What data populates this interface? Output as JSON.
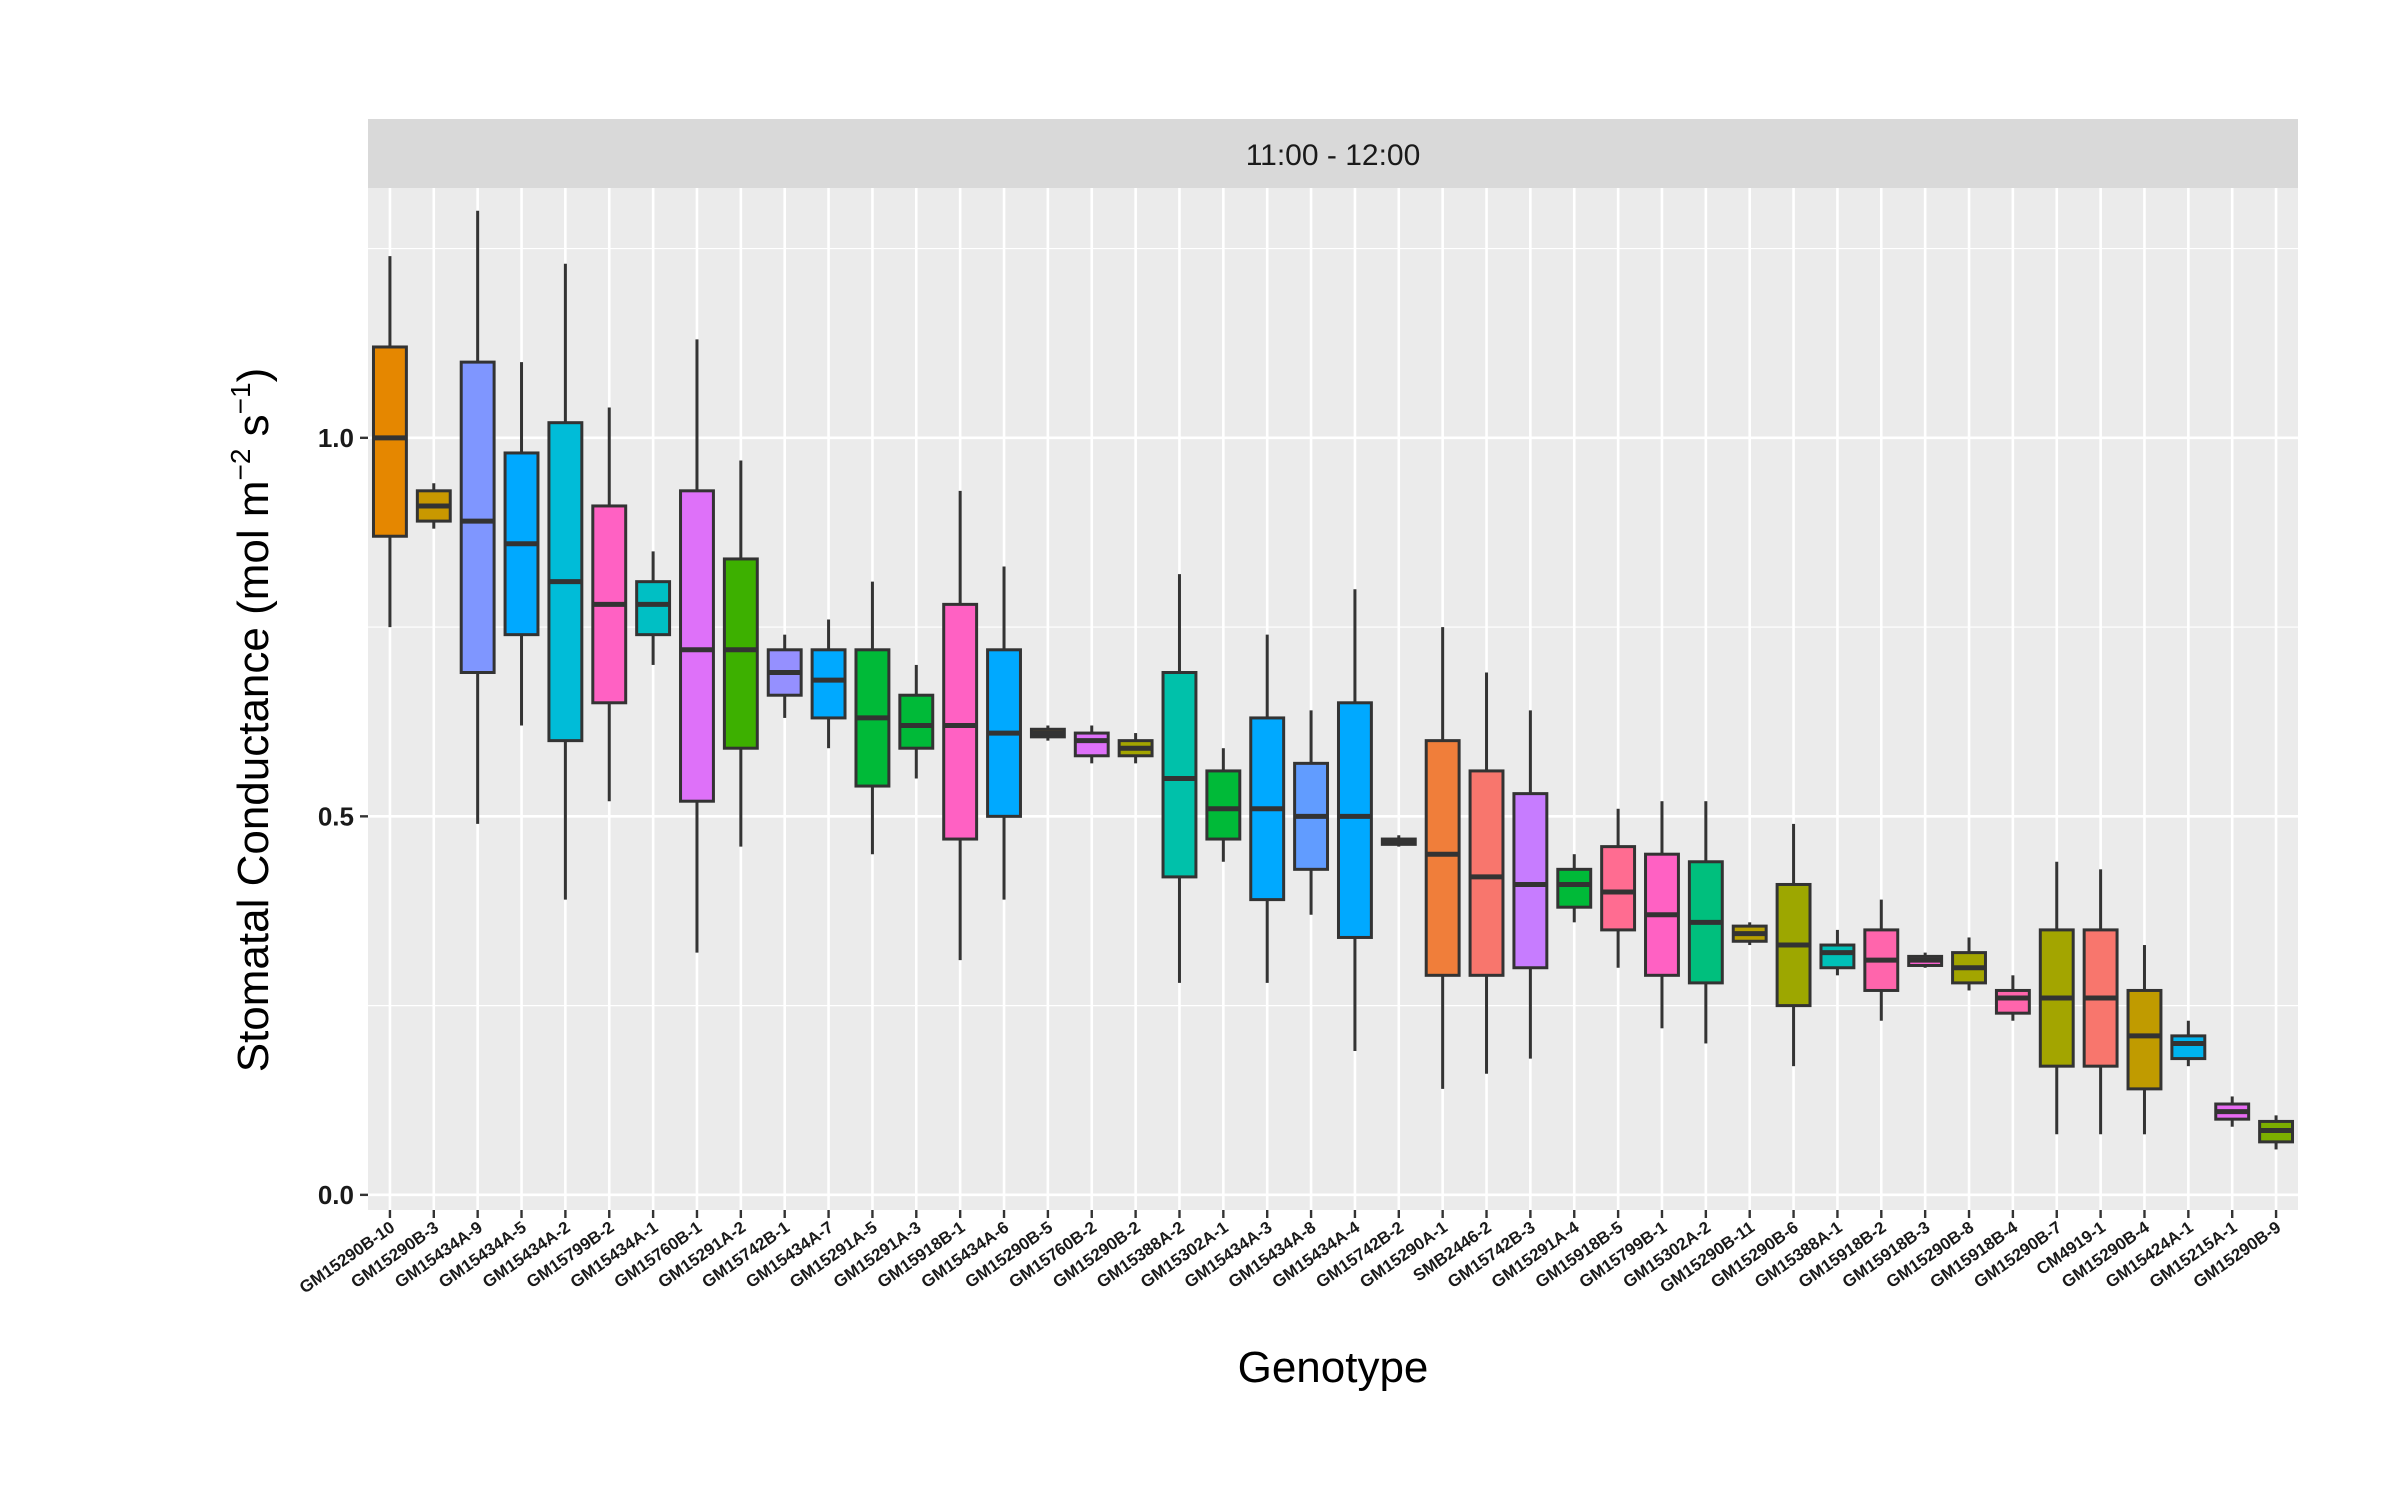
{
  "chart_data": {
    "type": "boxplot",
    "facet_label": "11:00 - 12:00",
    "xlabel": "Genotype",
    "ylabel": "Stomatal Conductance (mol m",
    "ylabel_exp1": "−2",
    "ylabel_mid": " s",
    "ylabel_exp2": "−1",
    "ylabel_end": ")",
    "ylim": [
      -0.02,
      1.33
    ],
    "y_ticks": [
      {
        "value": 0.0,
        "label": "0.0"
      },
      {
        "value": 0.5,
        "label": "0.5"
      },
      {
        "value": 1.0,
        "label": "1.0"
      }
    ],
    "y_minor_ticks": [
      0.25,
      0.75,
      1.25
    ],
    "grid": true,
    "legend": "none",
    "colors": {
      "panel_bg": "#ebebeb",
      "strip_bg": "#d9d9d9",
      "grid": "#ffffff",
      "box_outline": "#333333"
    },
    "boxes": [
      {
        "category": "GM15290B-10",
        "min": 0.75,
        "q1": 0.87,
        "median": 1.0,
        "q3": 1.12,
        "max": 1.24,
        "color": "#E58700"
      },
      {
        "category": "GM15290B-3",
        "min": 0.88,
        "q1": 0.89,
        "median": 0.91,
        "q3": 0.93,
        "max": 0.94,
        "color": "#C99800"
      },
      {
        "category": "GM15434A-9",
        "min": 0.49,
        "q1": 0.69,
        "median": 0.89,
        "q3": 1.1,
        "max": 1.3,
        "color": "#7F96FF"
      },
      {
        "category": "GM15434A-5",
        "min": 0.62,
        "q1": 0.74,
        "median": 0.86,
        "q3": 0.98,
        "max": 1.1,
        "color": "#00A9FF"
      },
      {
        "category": "GM15434A-2",
        "min": 0.39,
        "q1": 0.6,
        "median": 0.81,
        "q3": 1.02,
        "max": 1.23,
        "color": "#00BCD8"
      },
      {
        "category": "GM15799B-2",
        "min": 0.52,
        "q1": 0.65,
        "median": 0.78,
        "q3": 0.91,
        "max": 1.04,
        "color": "#FF61C3"
      },
      {
        "category": "GM15434A-1",
        "min": 0.7,
        "q1": 0.74,
        "median": 0.78,
        "q3": 0.81,
        "max": 0.85,
        "color": "#00BFC4"
      },
      {
        "category": "GM15760B-1",
        "min": 0.32,
        "q1": 0.52,
        "median": 0.72,
        "q3": 0.93,
        "max": 1.13,
        "color": "#DE71F9"
      },
      {
        "category": "GM15291A-2",
        "min": 0.46,
        "q1": 0.59,
        "median": 0.72,
        "q3": 0.84,
        "max": 0.97,
        "color": "#3DB000"
      },
      {
        "category": "GM15742B-1",
        "min": 0.63,
        "q1": 0.66,
        "median": 0.69,
        "q3": 0.72,
        "max": 0.74,
        "color": "#9590FF"
      },
      {
        "category": "GM15434A-7",
        "min": 0.59,
        "q1": 0.63,
        "median": 0.68,
        "q3": 0.72,
        "max": 0.76,
        "color": "#00A9FF"
      },
      {
        "category": "GM15291A-5",
        "min": 0.45,
        "q1": 0.54,
        "median": 0.63,
        "q3": 0.72,
        "max": 0.81,
        "color": "#00BA38"
      },
      {
        "category": "GM15291A-3",
        "min": 0.55,
        "q1": 0.59,
        "median": 0.62,
        "q3": 0.66,
        "max": 0.7,
        "color": "#00BA38"
      },
      {
        "category": "GM15918B-1",
        "min": 0.31,
        "q1": 0.47,
        "median": 0.62,
        "q3": 0.78,
        "max": 0.93,
        "color": "#FF61C3"
      },
      {
        "category": "GM15434A-6",
        "min": 0.39,
        "q1": 0.5,
        "median": 0.61,
        "q3": 0.72,
        "max": 0.83,
        "color": "#00A9FF"
      },
      {
        "category": "GM15290B-5",
        "min": 0.6,
        "q1": 0.605,
        "median": 0.61,
        "q3": 0.615,
        "max": 0.62,
        "color": "#D89000"
      },
      {
        "category": "GM15760B-2",
        "min": 0.57,
        "q1": 0.58,
        "median": 0.6,
        "q3": 0.61,
        "max": 0.62,
        "color": "#DE71F9"
      },
      {
        "category": "GM15290B-2",
        "min": 0.57,
        "q1": 0.58,
        "median": 0.59,
        "q3": 0.6,
        "max": 0.61,
        "color": "#A3A500"
      },
      {
        "category": "GM15388A-2",
        "min": 0.28,
        "q1": 0.42,
        "median": 0.55,
        "q3": 0.69,
        "max": 0.82,
        "color": "#00C1AA"
      },
      {
        "category": "GM15302A-1",
        "min": 0.44,
        "q1": 0.47,
        "median": 0.51,
        "q3": 0.56,
        "max": 0.59,
        "color": "#00BA38"
      },
      {
        "category": "GM15434A-3",
        "min": 0.28,
        "q1": 0.39,
        "median": 0.51,
        "q3": 0.63,
        "max": 0.74,
        "color": "#00A9FF"
      },
      {
        "category": "GM15434A-8",
        "min": 0.37,
        "q1": 0.43,
        "median": 0.5,
        "q3": 0.57,
        "max": 0.64,
        "color": "#619CFF"
      },
      {
        "category": "GM15434A-4",
        "min": 0.19,
        "q1": 0.34,
        "median": 0.5,
        "q3": 0.65,
        "max": 0.8,
        "color": "#00A9FF"
      },
      {
        "category": "GM15742B-2",
        "min": 0.46,
        "q1": 0.463,
        "median": 0.467,
        "q3": 0.47,
        "max": 0.475,
        "color": "#00C08B"
      },
      {
        "category": "GM15290A-1",
        "min": 0.14,
        "q1": 0.29,
        "median": 0.45,
        "q3": 0.6,
        "max": 0.75,
        "color": "#F07E3A"
      },
      {
        "category": "SMB2446-2",
        "min": 0.16,
        "q1": 0.29,
        "median": 0.42,
        "q3": 0.56,
        "max": 0.69,
        "color": "#F8766D"
      },
      {
        "category": "GM15742B-3",
        "min": 0.18,
        "q1": 0.3,
        "median": 0.41,
        "q3": 0.53,
        "max": 0.64,
        "color": "#C77CFF"
      },
      {
        "category": "GM15291A-4",
        "min": 0.36,
        "q1": 0.38,
        "median": 0.41,
        "q3": 0.43,
        "max": 0.45,
        "color": "#00BA38"
      },
      {
        "category": "GM15918B-5",
        "min": 0.3,
        "q1": 0.35,
        "median": 0.4,
        "q3": 0.46,
        "max": 0.51,
        "color": "#FF6C91"
      },
      {
        "category": "GM15799B-1",
        "min": 0.22,
        "q1": 0.29,
        "median": 0.37,
        "q3": 0.45,
        "max": 0.52,
        "color": "#FF61C3"
      },
      {
        "category": "GM15302A-2",
        "min": 0.2,
        "q1": 0.28,
        "median": 0.36,
        "q3": 0.44,
        "max": 0.52,
        "color": "#00BF7D"
      },
      {
        "category": "GM15290B-11",
        "min": 0.33,
        "q1": 0.335,
        "median": 0.345,
        "q3": 0.355,
        "max": 0.36,
        "color": "#B79F00"
      },
      {
        "category": "GM15290B-6",
        "min": 0.17,
        "q1": 0.25,
        "median": 0.33,
        "q3": 0.41,
        "max": 0.49,
        "color": "#9DA700"
      },
      {
        "category": "GM15388A-1",
        "min": 0.29,
        "q1": 0.3,
        "median": 0.32,
        "q3": 0.33,
        "max": 0.35,
        "color": "#00C0B8"
      },
      {
        "category": "GM15918B-2",
        "min": 0.23,
        "q1": 0.27,
        "median": 0.31,
        "q3": 0.35,
        "max": 0.39,
        "color": "#FF65AC"
      },
      {
        "category": "GM15918B-3",
        "min": 0.3,
        "q1": 0.303,
        "median": 0.31,
        "q3": 0.315,
        "max": 0.32,
        "color": "#FD61D1"
      },
      {
        "category": "GM15290B-8",
        "min": 0.27,
        "q1": 0.28,
        "median": 0.3,
        "q3": 0.32,
        "max": 0.34,
        "color": "#A3A500"
      },
      {
        "category": "GM15918B-4",
        "min": 0.23,
        "q1": 0.24,
        "median": 0.26,
        "q3": 0.27,
        "max": 0.29,
        "color": "#FF65AC"
      },
      {
        "category": "GM15290B-7",
        "min": 0.08,
        "q1": 0.17,
        "median": 0.26,
        "q3": 0.35,
        "max": 0.44,
        "color": "#A3A500"
      },
      {
        "category": "CM4919-1",
        "min": 0.08,
        "q1": 0.17,
        "median": 0.26,
        "q3": 0.35,
        "max": 0.43,
        "color": "#F8766D"
      },
      {
        "category": "GM15290B-4",
        "min": 0.08,
        "q1": 0.14,
        "median": 0.21,
        "q3": 0.27,
        "max": 0.33,
        "color": "#C09B00"
      },
      {
        "category": "GM15424A-1",
        "min": 0.17,
        "q1": 0.18,
        "median": 0.2,
        "q3": 0.21,
        "max": 0.23,
        "color": "#00B4EF"
      },
      {
        "category": "GM15215A-1",
        "min": 0.09,
        "q1": 0.1,
        "median": 0.11,
        "q3": 0.12,
        "max": 0.13,
        "color": "#E76BF3"
      },
      {
        "category": "GM15290B-9",
        "min": 0.06,
        "q1": 0.07,
        "median": 0.085,
        "q3": 0.097,
        "max": 0.105,
        "color": "#7CAE00"
      }
    ]
  }
}
